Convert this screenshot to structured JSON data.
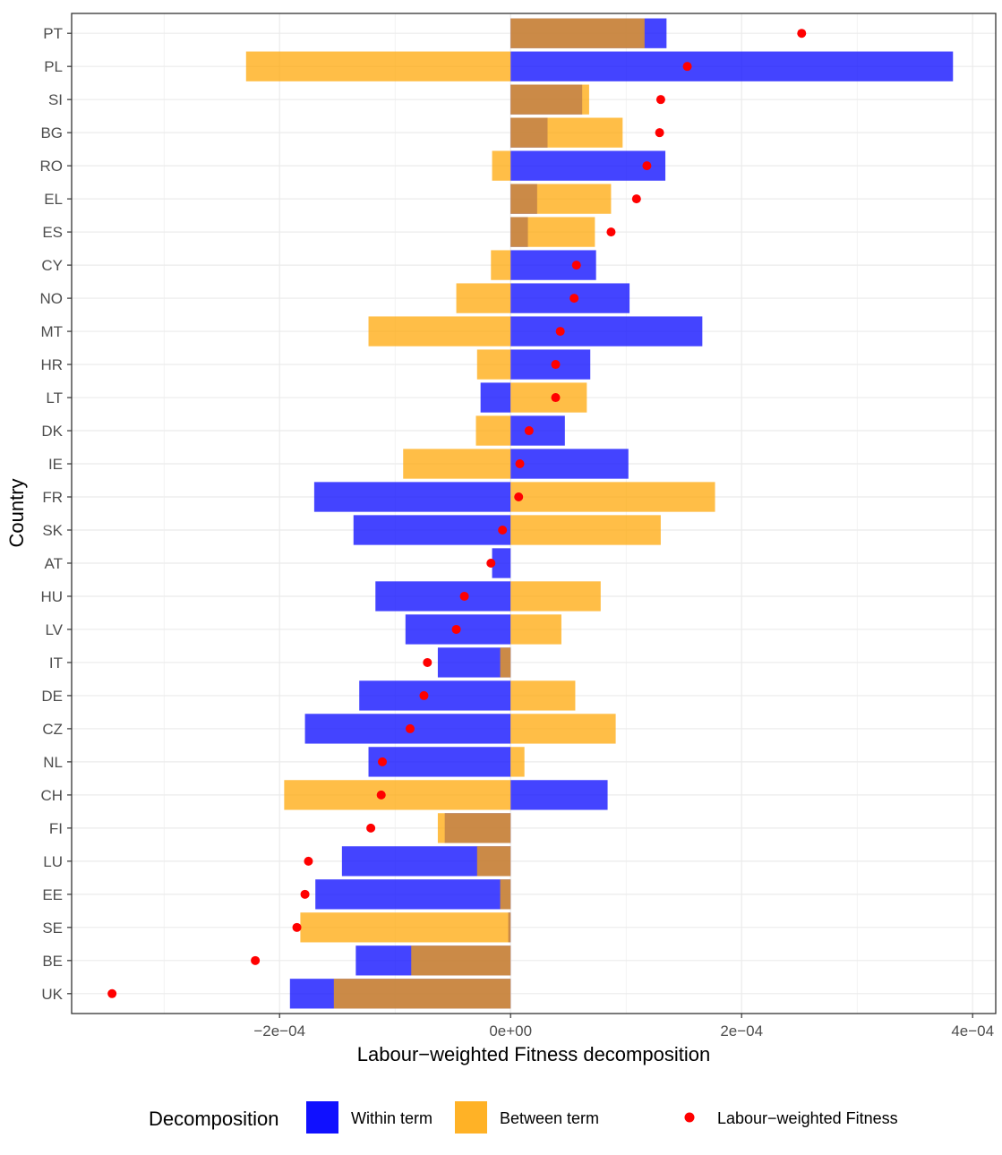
{
  "chart_data": {
    "type": "bar",
    "orientation": "horizontal",
    "xlabel": "Labour−weighted Fitness decomposition",
    "ylabel": "Country",
    "xlim": [
      -0.00038,
      0.00042
    ],
    "x_ticks": [
      -0.0002,
      0,
      0.0002,
      0.0004
    ],
    "x_tick_labels": [
      "−2e−04",
      "0e+00",
      "2e−04",
      "4e−04"
    ],
    "grid": true,
    "legend_position": "bottom",
    "legend": {
      "title": "Decomposition",
      "items": [
        {
          "name": "Within term",
          "kind": "bar",
          "color": "#1010FF"
        },
        {
          "name": "Between term",
          "kind": "bar",
          "color": "#FFA500"
        },
        {
          "name": "Labour−weighted Fitness",
          "kind": "point",
          "color": "#FF0000"
        }
      ]
    },
    "categories": [
      "PT",
      "PL",
      "SI",
      "BG",
      "RO",
      "EL",
      "ES",
      "CY",
      "NO",
      "MT",
      "HR",
      "LT",
      "DK",
      "IE",
      "FR",
      "SK",
      "AT",
      "HU",
      "LV",
      "IT",
      "DE",
      "CZ",
      "NL",
      "CH",
      "FI",
      "LU",
      "EE",
      "SE",
      "BE",
      "UK"
    ],
    "series": [
      {
        "name": "Within term",
        "color": "#1010FF",
        "values": [
          0.000135,
          0.000383,
          6.2e-05,
          3.2e-05,
          0.000134,
          2.3e-05,
          1.5e-05,
          7.4e-05,
          0.000103,
          0.000166,
          6.9e-05,
          -2.6e-05,
          4.7e-05,
          0.000102,
          -0.00017,
          -0.000136,
          -1.6e-05,
          -0.000117,
          -9.1e-05,
          -6.3e-05,
          -0.000131,
          -0.000178,
          -0.000123,
          8.4e-05,
          -5.7e-05,
          -0.000146,
          -0.000169,
          -2e-06,
          -0.000134,
          -0.000191
        ]
      },
      {
        "name": "Between term",
        "color": "#FFA500",
        "values": [
          0.000116,
          -0.000229,
          6.8e-05,
          9.7e-05,
          -1.6e-05,
          8.7e-05,
          7.3e-05,
          -1.7e-05,
          -4.7e-05,
          -0.000123,
          -2.9e-05,
          6.6e-05,
          -3e-05,
          -9.3e-05,
          0.000177,
          0.00013,
          0.0,
          7.8e-05,
          4.4e-05,
          -9e-06,
          5.6e-05,
          9.1e-05,
          1.2e-05,
          -0.000196,
          -6.3e-05,
          -2.9e-05,
          -9e-06,
          -0.000182,
          -8.6e-05,
          -0.000153
        ]
      },
      {
        "name": "Labour−weighted Fitness",
        "kind": "point",
        "color": "#FF0000",
        "values": [
          0.000252,
          0.000153,
          0.00013,
          0.000129,
          0.000118,
          0.000109,
          8.7e-05,
          5.7e-05,
          5.5e-05,
          4.3e-05,
          3.9e-05,
          3.9e-05,
          1.6e-05,
          8e-06,
          7e-06,
          -7e-06,
          -1.7e-05,
          -4e-05,
          -4.7e-05,
          -7.2e-05,
          -7.5e-05,
          -8.7e-05,
          -0.000111,
          -0.000112,
          -0.000121,
          -0.000175,
          -0.000178,
          -0.000185,
          -0.000221,
          -0.000345
        ]
      }
    ]
  }
}
